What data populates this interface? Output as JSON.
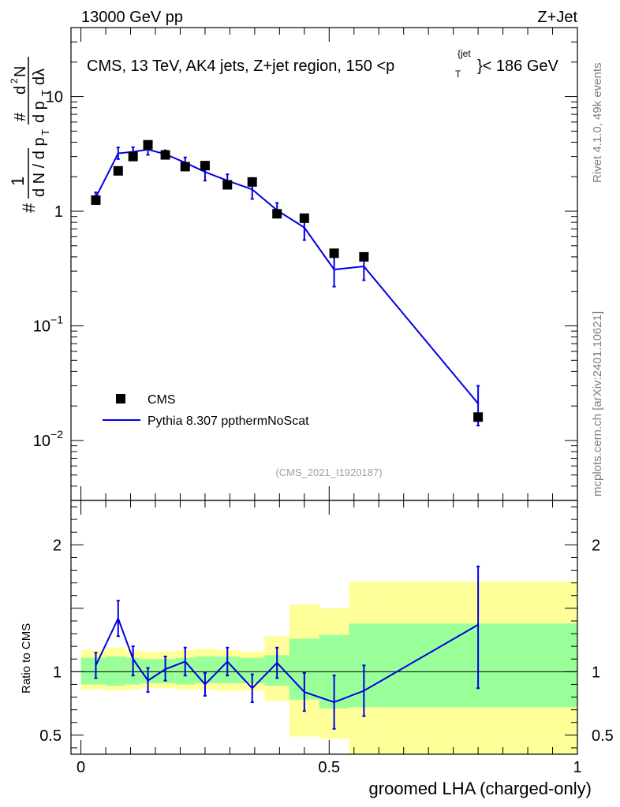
{
  "header": {
    "left": "13000 GeV pp",
    "right": "Z+Jet"
  },
  "plot_title": {
    "main": "CMS, 13 TeV, AK4 jets, Z+jet region, 150 <p",
    "sub": "T",
    "sup": "{jet",
    "tail": "}< 186 GeV"
  },
  "ylabel_main": {
    "hash": "#",
    "one": "1",
    "dn": "d N / d p",
    "t1": "T",
    "hash2": "#",
    "d2n": "d",
    "two": "2",
    "n": "N",
    "dp": "d p",
    "t2": "T",
    "dl": "dλ"
  },
  "side_texts": {
    "rivet": "Rivet 4.1.0,  49k events",
    "mcplots": "mcplots.cern.ch [arXiv:2401.10621]"
  },
  "analysis_label": "(CMS_2021_I1920187)",
  "legend": {
    "cms": "CMS",
    "mc": "Pythia 8.307 ppthermNoScat"
  },
  "colors": {
    "mc": "#0000e6",
    "band_outer": "#ffff99",
    "band_inner": "#99ff99",
    "data": "#000000"
  },
  "chart_data": [
    {
      "type": "scatter",
      "scale": "log",
      "ylim": [
        0.003,
        40
      ],
      "xlim": [
        -0.02,
        1.0
      ],
      "yticks": [
        {
          "value": 0.01,
          "base": "10",
          "exp": "−2"
        },
        {
          "value": 0.1,
          "base": "10",
          "exp": "−1"
        },
        {
          "value": 1,
          "base": "1",
          "exp": ""
        },
        {
          "value": 10,
          "base": "10",
          "exp": ""
        }
      ],
      "series": [
        {
          "name": "CMS",
          "x": [
            0.03,
            0.075,
            0.105,
            0.135,
            0.17,
            0.21,
            0.25,
            0.295,
            0.345,
            0.395,
            0.45,
            0.51,
            0.57,
            0.8
          ],
          "y": [
            1.25,
            2.25,
            3.0,
            3.8,
            3.1,
            2.45,
            2.5,
            1.7,
            1.8,
            0.95,
            0.87,
            0.43,
            0.4,
            0.016
          ],
          "xlo": [
            0.0,
            0.05,
            0.09,
            0.12,
            0.15,
            0.19,
            0.23,
            0.27,
            0.32,
            0.37,
            0.42,
            0.48,
            0.54,
            0.6
          ],
          "xhi": [
            0.05,
            0.09,
            0.12,
            0.15,
            0.19,
            0.23,
            0.27,
            0.32,
            0.37,
            0.42,
            0.48,
            0.54,
            0.6,
            1.0
          ]
        },
        {
          "name": "Pythia 8.307 ppthermNoScat",
          "x": [
            0.03,
            0.075,
            0.105,
            0.135,
            0.17,
            0.21,
            0.25,
            0.295,
            0.345,
            0.395,
            0.45,
            0.51,
            0.57,
            0.8
          ],
          "y": [
            1.32,
            3.2,
            3.3,
            3.45,
            3.15,
            2.65,
            2.2,
            1.85,
            1.55,
            1.02,
            0.72,
            0.31,
            0.33,
            0.021
          ],
          "ylo": [
            1.18,
            2.85,
            3.0,
            3.1,
            2.9,
            2.35,
            1.85,
            1.6,
            1.28,
            0.88,
            0.56,
            0.22,
            0.25,
            0.0135
          ],
          "yhi": [
            1.46,
            3.6,
            3.62,
            3.8,
            3.4,
            2.95,
            2.55,
            2.1,
            1.95,
            1.18,
            0.89,
            0.41,
            0.42,
            0.03
          ]
        }
      ]
    },
    {
      "type": "line",
      "ylabel": "Ratio to CMS",
      "ylim": [
        0.35,
        2.35
      ],
      "xlim": [
        -0.02,
        1.0
      ],
      "yticks": [
        0.5,
        1,
        2
      ],
      "xticks": [
        0,
        0.5,
        1
      ],
      "xlabel": "groomed LHA (charged-only)",
      "reference": 1,
      "bands": {
        "edges": [
          0.0,
          0.05,
          0.09,
          0.12,
          0.15,
          0.19,
          0.23,
          0.27,
          0.32,
          0.37,
          0.42,
          0.48,
          0.54,
          0.6,
          1.0
        ],
        "outer_lo": [
          0.86,
          0.85,
          0.86,
          0.87,
          0.87,
          0.86,
          0.86,
          0.85,
          0.85,
          0.77,
          0.49,
          0.47,
          0.35,
          0.35
        ],
        "outer_hi": [
          1.17,
          1.19,
          1.17,
          1.16,
          1.16,
          1.17,
          1.18,
          1.17,
          1.16,
          1.28,
          1.53,
          1.5,
          1.71,
          1.71
        ],
        "inner_lo": [
          0.9,
          0.89,
          0.9,
          0.91,
          0.91,
          0.9,
          0.91,
          0.91,
          0.91,
          0.89,
          0.78,
          0.71,
          0.72,
          0.72
        ],
        "inner_hi": [
          1.11,
          1.12,
          1.11,
          1.1,
          1.1,
          1.11,
          1.12,
          1.12,
          1.11,
          1.13,
          1.26,
          1.29,
          1.38,
          1.38
        ]
      },
      "series": [
        {
          "name": "Pythia 8.307 ppthermNoScat",
          "x": [
            0.03,
            0.075,
            0.105,
            0.135,
            0.17,
            0.21,
            0.25,
            0.295,
            0.345,
            0.395,
            0.45,
            0.51,
            0.57,
            0.8
          ],
          "y": [
            1.05,
            1.42,
            1.1,
            0.93,
            1.02,
            1.08,
            0.9,
            1.08,
            0.87,
            1.07,
            0.84,
            0.76,
            0.85,
            1.37
          ],
          "ylo": [
            0.95,
            1.28,
            0.97,
            0.84,
            0.93,
            0.97,
            0.81,
            0.97,
            0.76,
            0.95,
            0.69,
            0.55,
            0.65,
            0.87
          ],
          "yhi": [
            1.15,
            1.56,
            1.2,
            1.03,
            1.12,
            1.19,
            0.99,
            1.19,
            0.98,
            1.19,
            0.99,
            0.97,
            1.05,
            1.83
          ]
        }
      ]
    }
  ]
}
